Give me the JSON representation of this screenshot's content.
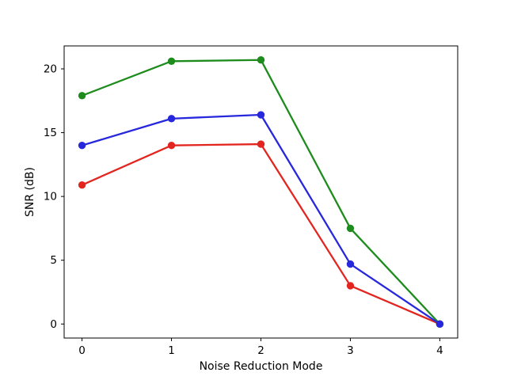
{
  "figure": {
    "background": "#ffffff",
    "frame_color": "#000000",
    "text_color": "#000000"
  },
  "chart_data": {
    "type": "line",
    "title": "",
    "xlabel": "Noise Reduction Mode",
    "ylabel": "SNR (dB)",
    "x": [
      0,
      1,
      2,
      3,
      4
    ],
    "series": [
      {
        "name": "red",
        "color": "#e3251f",
        "values": [
          10.9,
          14.0,
          14.1,
          3.0,
          0.0
        ]
      },
      {
        "name": "green",
        "color": "#1d8c1d",
        "values": [
          17.9,
          20.6,
          20.7,
          7.5,
          0.0
        ]
      },
      {
        "name": "blue",
        "color": "#2727dd",
        "values": [
          14.0,
          16.1,
          16.4,
          4.7,
          0.0
        ]
      }
    ],
    "xticks": [
      0,
      1,
      2,
      3,
      4
    ],
    "yticks": [
      0,
      5,
      10,
      15,
      20
    ],
    "xlim": [
      -0.2,
      4.2
    ],
    "ylim": [
      -1.1,
      21.8
    ],
    "grid": false,
    "legend": "none",
    "marker": "o",
    "line_width": 2.3,
    "marker_radius": 4.7
  }
}
